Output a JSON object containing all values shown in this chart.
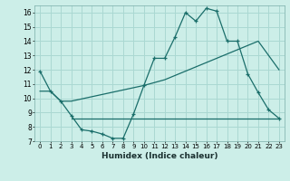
{
  "xlabel": "Humidex (Indice chaleur)",
  "background_color": "#cceee8",
  "grid_color": "#aad8d2",
  "line_color": "#1a6e6a",
  "xlim": [
    -0.5,
    23.5
  ],
  "ylim": [
    7,
    16.5
  ],
  "yticks": [
    7,
    8,
    9,
    10,
    11,
    12,
    13,
    14,
    15,
    16
  ],
  "xticks": [
    0,
    1,
    2,
    3,
    4,
    5,
    6,
    7,
    8,
    9,
    10,
    11,
    12,
    13,
    14,
    15,
    16,
    17,
    18,
    19,
    20,
    21,
    22,
    23
  ],
  "series": [
    {
      "x": [
        0,
        1,
        2,
        3,
        4,
        5,
        6,
        7,
        8,
        9,
        10,
        11,
        12,
        13,
        14,
        15,
        16,
        17,
        18,
        19,
        20,
        21,
        22,
        23
      ],
      "y": [
        11.9,
        10.5,
        9.8,
        8.8,
        7.8,
        7.7,
        7.5,
        7.2,
        7.2,
        8.9,
        10.9,
        12.8,
        12.8,
        14.3,
        16.0,
        15.4,
        16.3,
        16.1,
        14.0,
        14.0,
        11.7,
        10.4,
        9.2,
        8.6
      ],
      "marker": true
    },
    {
      "x": [
        0,
        1,
        2,
        3,
        10,
        11,
        12,
        13,
        14,
        15,
        16,
        17,
        18,
        19,
        20,
        21,
        22,
        23
      ],
      "y": [
        10.5,
        10.5,
        9.8,
        9.8,
        10.9,
        11.1,
        11.3,
        11.6,
        11.9,
        12.2,
        12.5,
        12.8,
        13.1,
        13.4,
        13.7,
        14.0,
        13.0,
        12.0
      ],
      "marker": false
    },
    {
      "x": [
        3,
        4,
        5,
        6,
        7,
        8,
        9,
        10,
        11,
        12,
        13,
        14,
        15,
        16,
        17,
        18,
        19,
        20,
        21,
        22,
        23
      ],
      "y": [
        8.6,
        8.6,
        8.6,
        8.6,
        8.6,
        8.6,
        8.6,
        8.6,
        8.6,
        8.6,
        8.6,
        8.6,
        8.6,
        8.6,
        8.6,
        8.6,
        8.6,
        8.6,
        8.6,
        8.6,
        8.6
      ],
      "marker": false
    }
  ]
}
